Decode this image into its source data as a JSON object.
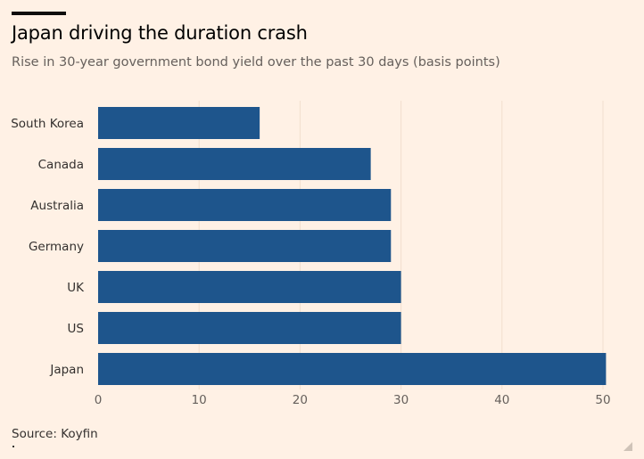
{
  "chart_data": {
    "type": "bar",
    "orientation": "horizontal",
    "title": "Japan driving the duration crash",
    "subtitle": "Rise in 30-year government bond yield over the past 30 days (basis points)",
    "categories": [
      "South Korea",
      "Canada",
      "Australia",
      "Germany",
      "UK",
      "US",
      "Japan"
    ],
    "values": [
      16,
      27,
      29,
      29,
      30,
      30,
      50.3
    ],
    "xlim": [
      0,
      50
    ],
    "xticks": [
      "0",
      "10",
      "20",
      "30",
      "40",
      "50"
    ],
    "xlabel": "",
    "ylabel": "",
    "grid": "vertical",
    "bar_color": "#1e558c",
    "grid_color": "#f2dfce",
    "source": "Source: Koyfin"
  },
  "colors": {
    "background": "#fff1e5",
    "bar": "#1e558c",
    "gridline": "#f2dfce"
  }
}
